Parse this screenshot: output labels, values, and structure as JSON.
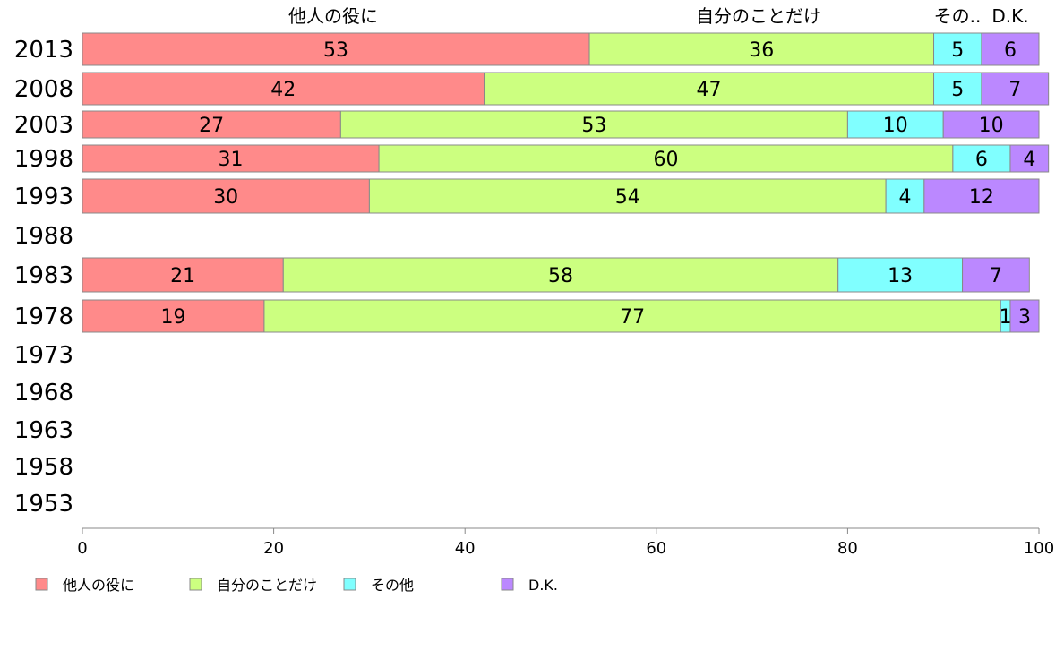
{
  "chart_data": {
    "type": "bar",
    "orientation": "horizontal",
    "stacked": true,
    "categories": [
      "2013",
      "2008",
      "2003",
      "1998",
      "1993",
      "1988",
      "1983",
      "1978",
      "1973",
      "1968",
      "1963",
      "1958",
      "1953"
    ],
    "series": [
      {
        "name": "他人の役に",
        "color": "#ff8a8a",
        "values": [
          53,
          42,
          27,
          31,
          30,
          null,
          21,
          19,
          null,
          null,
          null,
          null,
          null
        ]
      },
      {
        "name": "自分のことだけ",
        "color": "#ccff80",
        "values": [
          36,
          47,
          53,
          60,
          54,
          null,
          58,
          77,
          null,
          null,
          null,
          null,
          null
        ]
      },
      {
        "name": "その他",
        "color": "#80ffff",
        "values": [
          5,
          5,
          10,
          6,
          4,
          null,
          13,
          1,
          null,
          null,
          null,
          null,
          null
        ]
      },
      {
        "name": "D.K.",
        "color": "#bb88ff",
        "values": [
          6,
          7,
          10,
          4,
          12,
          null,
          7,
          3,
          null,
          null,
          null,
          null,
          null
        ]
      }
    ],
    "header_labels": [
      "他人の役に",
      "自分のことだけ",
      "その..",
      "D.K."
    ],
    "xlim": [
      0,
      100
    ],
    "xticks": [
      0,
      20,
      40,
      60,
      80,
      100
    ],
    "legend": {
      "placement": "bottom-left"
    }
  }
}
